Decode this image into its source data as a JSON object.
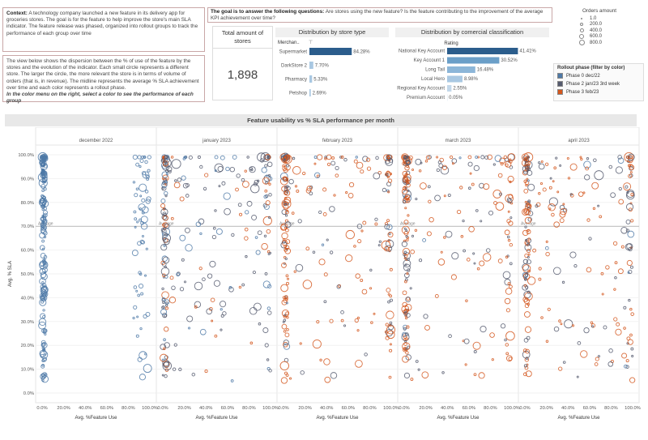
{
  "context": {
    "label": "Context:",
    "text": "A technology company launched a new feature in its delivery app for groceries stores. The goal is for the feature to help improve the store's main SLA indicator. The feature release was phased, organized into rollout groups to track the performance of each group over time"
  },
  "view_note": {
    "text": "The view below shows the dispersion between the % of use of the feature by the stores and the evolution of the indicator. Each small circle represents a different store. The larger the circle, the more relevant the store is in terms of volume of orders (that is, in revenue). The midline represents the average % SLA achievement over time and each color represents a rollout phase.",
    "hint": "In the color menu on the right, select a color to see the performance of each group"
  },
  "goal": {
    "label": "The goal is to answer the following questions:",
    "text": "Are stores using the new feature? Is the feature contributing to the improvement of the average KPI achievement over time?"
  },
  "kpi": {
    "title": "Total amount of stores",
    "value": "1,898"
  },
  "orders_legend": {
    "title": "Orders amount",
    "items": [
      "1.0",
      "200.0",
      "400.0",
      "600.0",
      "800.0"
    ]
  },
  "rollout_legend": {
    "title": "Rollout phase (filter by color)",
    "items": [
      {
        "label": "Phase 0 dec/22",
        "color": "#4e79a7"
      },
      {
        "label": "Phase 2 jan/23 3rd week",
        "color": "#555b6e"
      },
      {
        "label": "Phase 3 feb/23",
        "color": "#d4561c"
      }
    ]
  },
  "main_title": "Feature usability vs % SLA performance per month",
  "chart_data": [
    {
      "type": "bar",
      "title": "Distribution by store type",
      "axis_header": "Merchan..",
      "filter_icon": "filter-icon",
      "categories": [
        "Supermarket",
        "DarkStore 2",
        "Pharmacy",
        "Petshop"
      ],
      "values": [
        84.28,
        7.7,
        5.33,
        2.69
      ],
      "labels": [
        "84.28%",
        "7.70%",
        "5.33%",
        "2.69%"
      ],
      "colors": [
        "#2b5d8c",
        "#a9c8e2",
        "#a9c8e2",
        "#a9c8e2"
      ],
      "xlim": [
        0,
        100
      ]
    },
    {
      "type": "bar",
      "title": "Distribution by comercial classification",
      "axis_header": "Rating",
      "categories": [
        "National Key Account",
        "Key Account 1",
        "Long Tail",
        "Local Hero",
        "Regional Key Account",
        "Premium Account"
      ],
      "values": [
        41.41,
        30.52,
        16.48,
        8.98,
        2.55,
        0.05
      ],
      "labels": [
        "41.41%",
        "30.52%",
        "16.48%",
        "8.98%",
        "2.55%",
        "0.05%"
      ],
      "colors": [
        "#2b5d8c",
        "#6b9fc8",
        "#8cb6d8",
        "#a9c8e2",
        "#c3d8ea",
        "#c3d8ea"
      ],
      "xlim": [
        0,
        45
      ]
    },
    {
      "type": "scatter",
      "title": "Feature usability vs % SLA performance per month",
      "column_header": "Month/year",
      "panels": [
        "december 2022",
        "january 2023",
        "february 2023",
        "march 2023",
        "april 2023"
      ],
      "xlabel": "Avg. %Feature Use",
      "ylabel": "Avg. % SLA",
      "x_ticks": [
        "0.0%",
        "20.0%",
        "40.0%",
        "60.0%",
        "80.0%",
        "100.0%"
      ],
      "y_ticks": [
        "0.0%",
        "10.0%",
        "20.0%",
        "30.0%",
        "40.0%",
        "50.0%",
        "60.0%",
        "70.0%",
        "80.0%",
        "90.0%",
        "100.0%"
      ],
      "xlim": [
        0,
        100
      ],
      "ylim": [
        0,
        100
      ],
      "reference_line": {
        "label": "Average",
        "y": 70
      },
      "panel_mix": [
        {
          "blue": 1.0,
          "gray": 0.0,
          "orange": 0.0
        },
        {
          "blue": 0.15,
          "gray": 0.6,
          "orange": 0.25
        },
        {
          "blue": 0.05,
          "gray": 0.2,
          "orange": 0.75
        },
        {
          "blue": 0.05,
          "gray": 0.3,
          "orange": 0.65
        },
        {
          "blue": 0.05,
          "gray": 0.3,
          "orange": 0.65
        }
      ]
    }
  ]
}
